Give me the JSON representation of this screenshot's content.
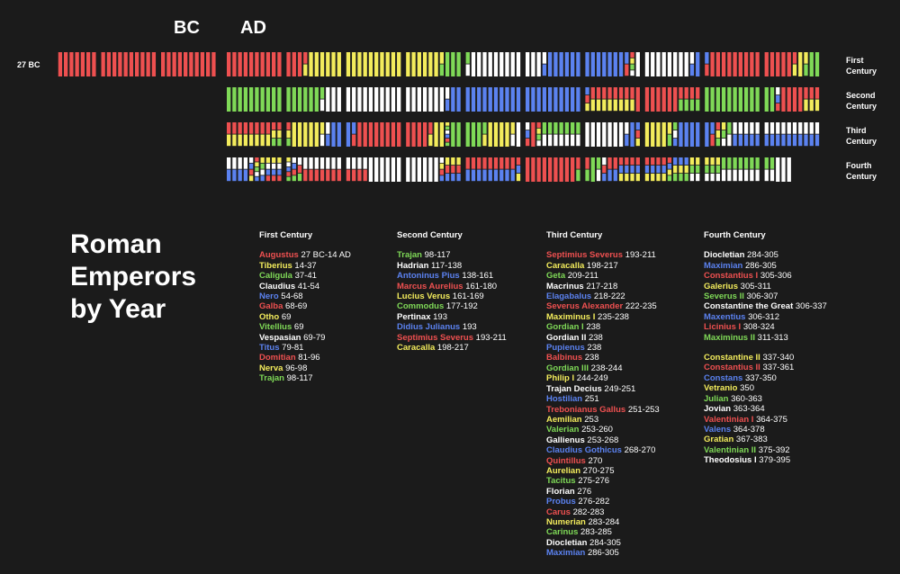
{
  "header": {
    "bc": "BC",
    "ad": "AD",
    "start": "27 BC"
  },
  "title": "Roman Emperors by Year",
  "centuries": [
    {
      "label": "First Century",
      "groups": [
        [
          {
            "name": "Augustus",
            "years": "27 BC-14 AD",
            "color": "#ee5050"
          },
          {
            "name": "Tiberius",
            "years": "14-37",
            "color": "#f3ec5c"
          },
          {
            "name": "Caligula",
            "years": "37-41",
            "color": "#7fd957"
          },
          {
            "name": "Claudius",
            "years": "41-54",
            "color": "#ffffff"
          },
          {
            "name": "Nero",
            "years": "54-68",
            "color": "#5b82f0"
          },
          {
            "name": "Galba",
            "years": "68-69",
            "color": "#ee5050"
          },
          {
            "name": "Otho",
            "years": "69",
            "color": "#f3ec5c"
          },
          {
            "name": "Vitellius",
            "years": "69",
            "color": "#7fd957"
          },
          {
            "name": "Vespasian",
            "years": "69-79",
            "color": "#ffffff"
          },
          {
            "name": "Titus",
            "years": "79-81",
            "color": "#5b82f0"
          },
          {
            "name": "Domitian",
            "years": "81-96",
            "color": "#ee5050"
          },
          {
            "name": "Nerva",
            "years": "96-98",
            "color": "#f3ec5c"
          },
          {
            "name": "Trajan",
            "years": "98-117",
            "color": "#7fd957"
          }
        ]
      ]
    },
    {
      "label": "Second Century",
      "groups": [
        [
          {
            "name": "Trajan",
            "years": "98-117",
            "color": "#7fd957"
          },
          {
            "name": "Hadrian",
            "years": "117-138",
            "color": "#ffffff"
          },
          {
            "name": "Antoninus Pius",
            "years": "138-161",
            "color": "#5b82f0"
          },
          {
            "name": "Marcus Aurelius",
            "years": "161-180",
            "color": "#ee5050"
          },
          {
            "name": "Lucius Verus",
            "years": "161-169",
            "color": "#f3ec5c"
          },
          {
            "name": "Commodus",
            "years": "177-192",
            "color": "#7fd957"
          },
          {
            "name": "Pertinax",
            "years": "193",
            "color": "#ffffff"
          },
          {
            "name": "Didius Julianus",
            "years": "193",
            "color": "#5b82f0"
          },
          {
            "name": "Septimius Severus",
            "years": "193-211",
            "color": "#ee5050"
          },
          {
            "name": "Caracalla",
            "years": "198-217",
            "color": "#f3ec5c"
          }
        ]
      ]
    },
    {
      "label": "Third Century",
      "groups": [
        [
          {
            "name": "Septimius Severus",
            "years": "193-211",
            "color": "#ee5050"
          },
          {
            "name": "Caracalla",
            "years": "198-217",
            "color": "#f3ec5c"
          },
          {
            "name": "Geta",
            "years": "209-211",
            "color": "#7fd957"
          },
          {
            "name": "Macrinus",
            "years": "217-218",
            "color": "#ffffff"
          },
          {
            "name": "Elagabalus",
            "years": "218-222",
            "color": "#5b82f0"
          },
          {
            "name": "Severus Alexander",
            "years": "222-235",
            "color": "#ee5050"
          },
          {
            "name": "Maximinus I",
            "years": "235-238",
            "color": "#f3ec5c"
          },
          {
            "name": "Gordian I",
            "years": "238",
            "color": "#7fd957"
          },
          {
            "name": "Gordian II",
            "years": "238",
            "color": "#ffffff"
          },
          {
            "name": "Pupienus",
            "years": "238",
            "color": "#5b82f0"
          },
          {
            "name": "Balbinus",
            "years": "238",
            "color": "#ee5050"
          },
          {
            "name": "Gordian III",
            "years": "238-244",
            "color": "#7fd957"
          },
          {
            "name": "Philip I",
            "years": "244-249",
            "color": "#f3ec5c"
          },
          {
            "name": "Trajan Decius",
            "years": "249-251",
            "color": "#ffffff"
          },
          {
            "name": "Hostilian",
            "years": "251",
            "color": "#5b82f0"
          },
          {
            "name": "Trebonianus Gallus",
            "years": "251-253",
            "color": "#ee5050"
          },
          {
            "name": "Aemilian",
            "years": "253",
            "color": "#f3ec5c"
          },
          {
            "name": "Valerian",
            "years": "253-260",
            "color": "#7fd957"
          },
          {
            "name": "Gallienus",
            "years": "253-268",
            "color": "#ffffff"
          },
          {
            "name": "Claudius Gothicus",
            "years": "268-270",
            "color": "#5b82f0"
          },
          {
            "name": "Quintillus",
            "years": "270",
            "color": "#ee5050"
          },
          {
            "name": "Aurelian",
            "years": "270-275",
            "color": "#f3ec5c"
          },
          {
            "name": "Tacitus",
            "years": "275-276",
            "color": "#7fd957"
          },
          {
            "name": "Florian",
            "years": "276",
            "color": "#ffffff"
          },
          {
            "name": "Probus",
            "years": "276-282",
            "color": "#5b82f0"
          },
          {
            "name": "Carus",
            "years": "282-283",
            "color": "#ee5050"
          },
          {
            "name": "Numerian",
            "years": "283-284",
            "color": "#f3ec5c"
          },
          {
            "name": "Carinus",
            "years": "283-285",
            "color": "#7fd957"
          },
          {
            "name": "Diocletian",
            "years": "284-305",
            "color": "#ffffff"
          },
          {
            "name": "Maximian",
            "years": "286-305",
            "color": "#5b82f0"
          }
        ]
      ]
    },
    {
      "label": "Fourth Century",
      "groups": [
        [
          {
            "name": "Diocletian",
            "years": "284-305",
            "color": "#ffffff"
          },
          {
            "name": "Maximian",
            "years": "286-305",
            "color": "#5b82f0"
          },
          {
            "name": "Constantius I",
            "years": "305-306",
            "color": "#ee5050"
          },
          {
            "name": "Galerius",
            "years": "305-311",
            "color": "#f3ec5c"
          },
          {
            "name": "Severus II",
            "years": "306-307",
            "color": "#7fd957"
          },
          {
            "name": "Constantine the Great",
            "years": "306-337",
            "color": "#ffffff"
          },
          {
            "name": "Maxentius",
            "years": "306-312",
            "color": "#5b82f0"
          },
          {
            "name": "Licinius I",
            "years": "308-324",
            "color": "#ee5050"
          },
          {
            "name": "Maximinus II",
            "years": "311-313",
            "color": "#7fd957"
          }
        ],
        [
          {
            "name": "Constantine II",
            "years": "337-340",
            "color": "#f3ec5c"
          },
          {
            "name": "Constantius II",
            "years": "337-361",
            "color": "#ee5050"
          },
          {
            "name": "Constans",
            "years": "337-350",
            "color": "#5b82f0"
          },
          {
            "name": "Vetranio",
            "years": "350",
            "color": "#f3ec5c"
          },
          {
            "name": "Julian",
            "years": "360-363",
            "color": "#7fd957"
          },
          {
            "name": "Jovian",
            "years": "363-364",
            "color": "#ffffff"
          },
          {
            "name": "Valentinian I",
            "years": "364-375",
            "color": "#ee5050"
          },
          {
            "name": "Valens",
            "years": "364-378",
            "color": "#5b82f0"
          },
          {
            "name": "Gratian",
            "years": "367-383",
            "color": "#f3ec5c"
          },
          {
            "name": "Valentinian II",
            "years": "375-392",
            "color": "#7fd957"
          },
          {
            "name": "Theodosius I",
            "years": "379-395",
            "color": "#ffffff"
          }
        ]
      ]
    }
  ]
}
